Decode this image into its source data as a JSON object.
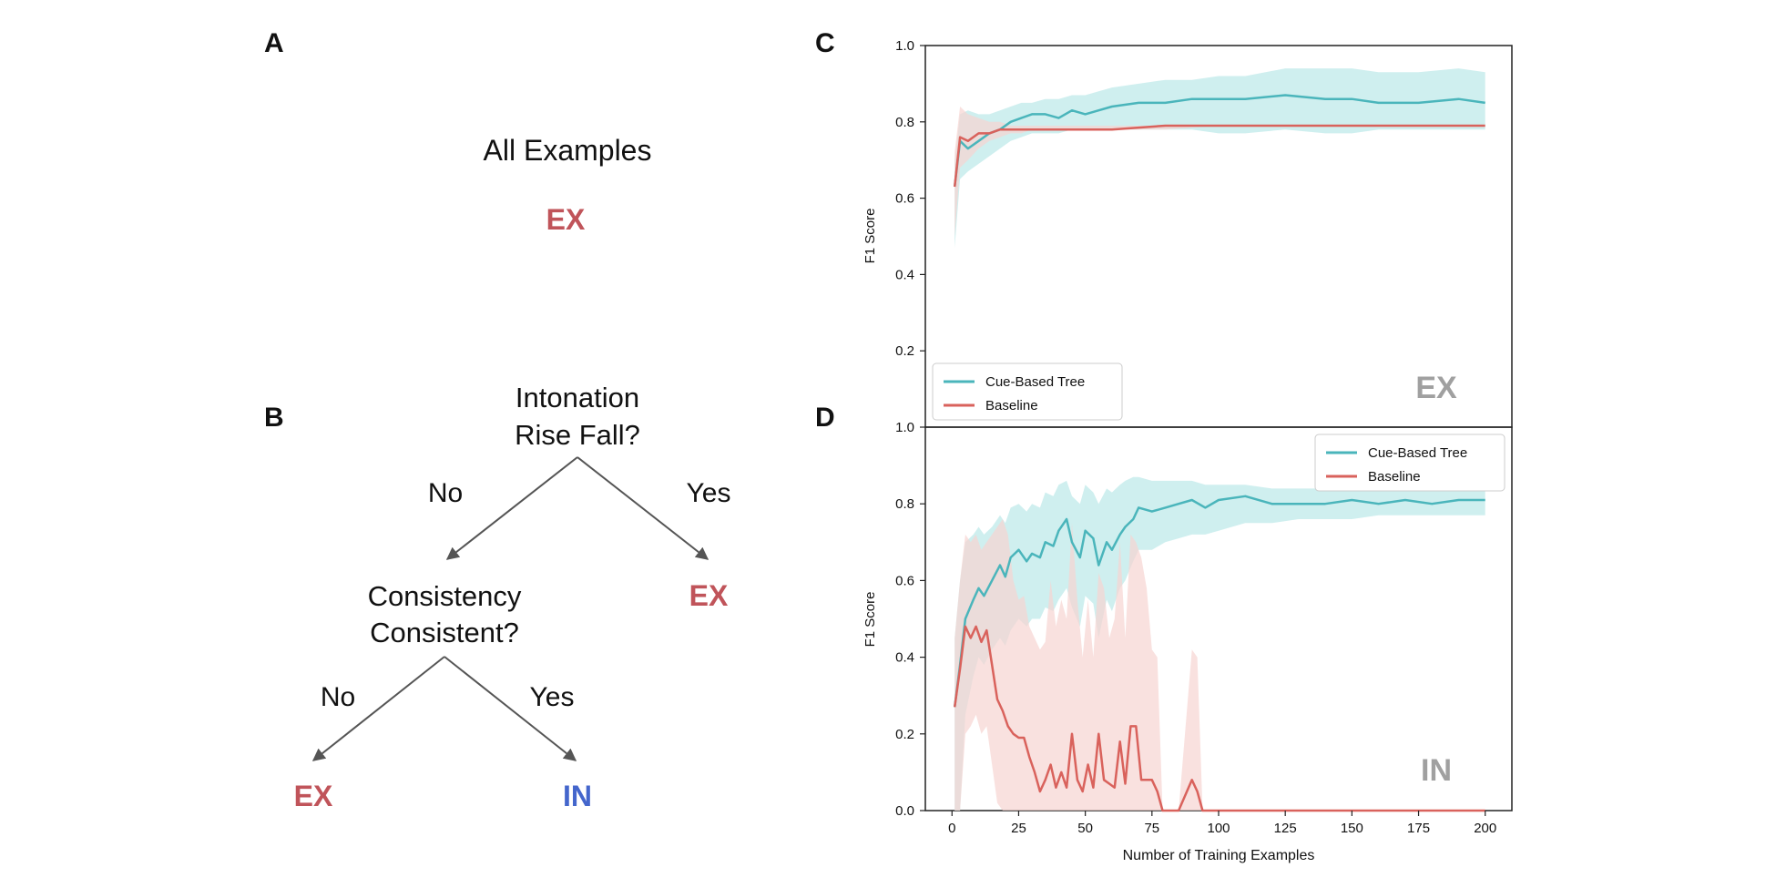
{
  "panels": {
    "a": {
      "letter": "A",
      "root_label": "All Examples",
      "root_class": "EX"
    },
    "b": {
      "letter": "B",
      "root_question": [
        "Intonation",
        "Rise Fall?"
      ],
      "root_no": "No",
      "root_yes": "Yes",
      "right_leaf": "EX",
      "child_question": [
        "Consistency",
        "Consistent?"
      ],
      "child_no": "No",
      "child_yes": "Yes",
      "left_leaf": "EX",
      "middle_leaf": "IN"
    },
    "c": {
      "letter": "C"
    },
    "d": {
      "letter": "D"
    }
  },
  "colors": {
    "ex": "#c0545a",
    "in": "#4466cc",
    "cue_based": "#4ab5bb",
    "baseline": "#d9625c",
    "cue_band": "#bfe9ea",
    "baseline_band": "#f6d4d1",
    "corner_label": "#a0a0a0"
  },
  "chart_data": [
    {
      "panel": "C",
      "type": "line",
      "ylabel": "F1 Score",
      "xlabel": "",
      "xlim": [
        -10,
        210
      ],
      "ylim": [
        0.0,
        1.0
      ],
      "yticks": [
        "0.2",
        "0.4",
        "0.6",
        "0.8",
        "1.0"
      ],
      "xticks": [],
      "legend": "bottom-left",
      "corner_label": "EX",
      "series": [
        {
          "name": "Cue-Based Tree",
          "x": [
            1,
            3,
            6,
            10,
            14,
            18,
            22,
            26,
            30,
            35,
            40,
            45,
            50,
            55,
            60,
            70,
            80,
            90,
            100,
            110,
            125,
            140,
            150,
            160,
            175,
            190,
            200
          ],
          "y": [
            0.63,
            0.75,
            0.73,
            0.75,
            0.77,
            0.78,
            0.8,
            0.81,
            0.82,
            0.82,
            0.81,
            0.83,
            0.82,
            0.83,
            0.84,
            0.85,
            0.85,
            0.86,
            0.86,
            0.86,
            0.87,
            0.86,
            0.86,
            0.85,
            0.85,
            0.86,
            0.85
          ],
          "lower": [
            0.47,
            0.65,
            0.67,
            0.69,
            0.71,
            0.73,
            0.75,
            0.76,
            0.77,
            0.77,
            0.77,
            0.78,
            0.78,
            0.78,
            0.78,
            0.78,
            0.78,
            0.78,
            0.77,
            0.77,
            0.78,
            0.77,
            0.77,
            0.78,
            0.78,
            0.78,
            0.78
          ],
          "upper": [
            0.7,
            0.82,
            0.83,
            0.82,
            0.82,
            0.83,
            0.84,
            0.85,
            0.85,
            0.86,
            0.86,
            0.87,
            0.87,
            0.88,
            0.89,
            0.9,
            0.91,
            0.91,
            0.92,
            0.92,
            0.94,
            0.94,
            0.94,
            0.93,
            0.93,
            0.94,
            0.93
          ]
        },
        {
          "name": "Baseline",
          "x": [
            1,
            3,
            6,
            10,
            14,
            18,
            22,
            26,
            30,
            40,
            60,
            80,
            100,
            120,
            150,
            180,
            200
          ],
          "y": [
            0.63,
            0.76,
            0.75,
            0.77,
            0.77,
            0.78,
            0.78,
            0.78,
            0.78,
            0.78,
            0.78,
            0.79,
            0.79,
            0.79,
            0.79,
            0.79,
            0.79
          ],
          "lower": [
            0.5,
            0.68,
            0.7,
            0.73,
            0.75,
            0.76,
            0.77,
            0.77,
            0.78,
            0.78,
            0.78,
            0.78,
            0.79,
            0.79,
            0.79,
            0.79,
            0.79
          ],
          "upper": [
            0.72,
            0.84,
            0.82,
            0.81,
            0.8,
            0.8,
            0.79,
            0.79,
            0.79,
            0.79,
            0.79,
            0.79,
            0.79,
            0.79,
            0.79,
            0.79,
            0.79
          ]
        }
      ]
    },
    {
      "panel": "D",
      "type": "line",
      "ylabel": "F1 Score",
      "xlabel": "Number of Training Examples",
      "xlim": [
        -10,
        210
      ],
      "ylim": [
        0.0,
        1.0
      ],
      "yticks": [
        "0.0",
        "0.2",
        "0.4",
        "0.6",
        "0.8",
        "1.0"
      ],
      "xticks": [
        "0",
        "25",
        "50",
        "75",
        "100",
        "125",
        "150",
        "175",
        "200"
      ],
      "legend": "top-right",
      "corner_label": "IN",
      "series": [
        {
          "name": "Cue-Based Tree",
          "x": [
            1,
            3,
            5,
            8,
            10,
            12,
            15,
            18,
            20,
            22,
            25,
            28,
            30,
            33,
            35,
            38,
            40,
            43,
            45,
            48,
            50,
            53,
            55,
            58,
            60,
            63,
            65,
            68,
            70,
            75,
            80,
            85,
            90,
            95,
            100,
            110,
            120,
            130,
            140,
            150,
            160,
            170,
            180,
            190,
            200
          ],
          "y": [
            0.27,
            0.38,
            0.5,
            0.55,
            0.58,
            0.56,
            0.6,
            0.64,
            0.61,
            0.66,
            0.68,
            0.65,
            0.67,
            0.66,
            0.7,
            0.69,
            0.73,
            0.76,
            0.7,
            0.66,
            0.73,
            0.71,
            0.64,
            0.7,
            0.68,
            0.72,
            0.74,
            0.76,
            0.79,
            0.78,
            0.79,
            0.8,
            0.81,
            0.79,
            0.81,
            0.82,
            0.8,
            0.8,
            0.8,
            0.81,
            0.8,
            0.81,
            0.8,
            0.81,
            0.81
          ],
          "lower": [
            0.0,
            0.0,
            0.25,
            0.35,
            0.4,
            0.38,
            0.42,
            0.45,
            0.43,
            0.47,
            0.5,
            0.48,
            0.5,
            0.5,
            0.53,
            0.52,
            0.55,
            0.58,
            0.53,
            0.48,
            0.56,
            0.54,
            0.45,
            0.55,
            0.52,
            0.58,
            0.6,
            0.65,
            0.68,
            0.68,
            0.7,
            0.71,
            0.72,
            0.72,
            0.73,
            0.75,
            0.75,
            0.76,
            0.76,
            0.76,
            0.77,
            0.77,
            0.77,
            0.77,
            0.77
          ],
          "upper": [
            0.45,
            0.6,
            0.7,
            0.72,
            0.74,
            0.72,
            0.74,
            0.77,
            0.75,
            0.79,
            0.8,
            0.78,
            0.8,
            0.79,
            0.83,
            0.82,
            0.85,
            0.86,
            0.82,
            0.8,
            0.85,
            0.83,
            0.8,
            0.84,
            0.83,
            0.85,
            0.86,
            0.87,
            0.87,
            0.86,
            0.86,
            0.86,
            0.86,
            0.85,
            0.85,
            0.85,
            0.84,
            0.84,
            0.84,
            0.84,
            0.84,
            0.84,
            0.84,
            0.84,
            0.84
          ]
        },
        {
          "name": "Baseline",
          "x": [
            1,
            3,
            5,
            7,
            9,
            11,
            13,
            15,
            17,
            19,
            21,
            23,
            25,
            27,
            29,
            31,
            33,
            35,
            37,
            39,
            41,
            43,
            45,
            47,
            49,
            51,
            53,
            55,
            57,
            59,
            61,
            63,
            65,
            67,
            69,
            71,
            73,
            75,
            77,
            79,
            85,
            90,
            92,
            94,
            100,
            150,
            200
          ],
          "y": [
            0.27,
            0.37,
            0.48,
            0.45,
            0.48,
            0.44,
            0.47,
            0.38,
            0.29,
            0.26,
            0.22,
            0.2,
            0.19,
            0.19,
            0.14,
            0.1,
            0.05,
            0.08,
            0.12,
            0.06,
            0.1,
            0.06,
            0.2,
            0.08,
            0.05,
            0.12,
            0.06,
            0.2,
            0.08,
            0.07,
            0.06,
            0.18,
            0.07,
            0.22,
            0.22,
            0.08,
            0.08,
            0.08,
            0.05,
            0.0,
            0.0,
            0.08,
            0.05,
            0.0,
            0.0,
            0.0,
            0.0
          ],
          "lower": [
            0.0,
            0.0,
            0.2,
            0.22,
            0.25,
            0.2,
            0.22,
            0.12,
            0.02,
            0.0,
            0.0,
            0.0,
            0.0,
            0.0,
            0.0,
            0.0,
            0.0,
            0.0,
            0.0,
            0.0,
            0.0,
            0.0,
            0.0,
            0.0,
            0.0,
            0.0,
            0.0,
            0.0,
            0.0,
            0.0,
            0.0,
            0.0,
            0.0,
            0.0,
            0.0,
            0.0,
            0.0,
            0.0,
            0.0,
            0.0,
            0.0,
            0.0,
            0.0,
            0.0,
            0.0,
            0.0,
            0.0
          ],
          "upper": [
            0.45,
            0.6,
            0.72,
            0.7,
            0.72,
            0.68,
            0.7,
            0.72,
            0.74,
            0.76,
            0.72,
            0.6,
            0.55,
            0.56,
            0.48,
            0.45,
            0.42,
            0.44,
            0.6,
            0.48,
            0.55,
            0.5,
            0.75,
            0.55,
            0.4,
            0.55,
            0.4,
            0.62,
            0.58,
            0.45,
            0.5,
            0.7,
            0.45,
            0.72,
            0.7,
            0.66,
            0.58,
            0.42,
            0.4,
            0.0,
            0.0,
            0.42,
            0.4,
            0.0,
            0.0,
            0.0,
            0.0
          ]
        }
      ]
    }
  ]
}
